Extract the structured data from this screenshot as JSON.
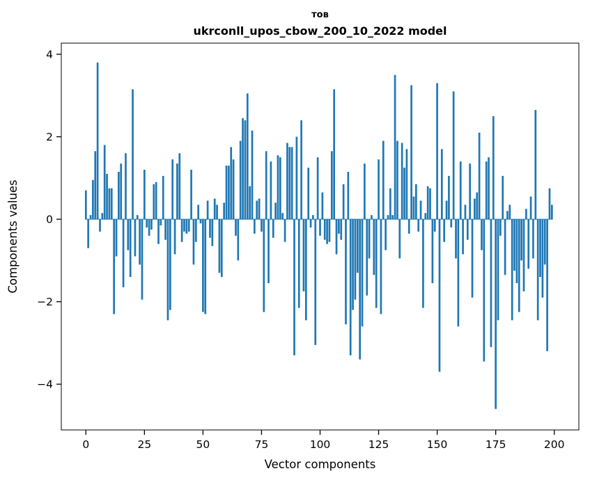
{
  "figure": {
    "background": "#ffffff",
    "axis_color": "#000000",
    "tick_label_color": "#000000"
  },
  "chart_data": {
    "type": "bar",
    "title": "тов",
    "subtitle": "ukrconll_upos_cbow_200_10_2022 model",
    "xlabel": "Vector components",
    "ylabel": "Components values",
    "bar_color": "#1f77b4",
    "n_components": 200,
    "x_ticks": [
      0,
      25,
      50,
      75,
      100,
      125,
      150,
      175,
      200
    ],
    "y_ticks": [
      -4,
      -2,
      0,
      2,
      4
    ],
    "xlim": [
      -10.5,
      210.5
    ],
    "ylim": [
      -5.11,
      4.27
    ],
    "grid": false,
    "legend": false,
    "values": [
      0.7,
      -0.7,
      0.1,
      0.95,
      1.65,
      3.8,
      -0.3,
      0.15,
      1.8,
      1.1,
      0.75,
      0.75,
      -2.3,
      -0.9,
      1.15,
      1.35,
      -1.65,
      1.6,
      -0.75,
      -1.4,
      3.15,
      -0.9,
      0.1,
      -1.1,
      -1.95,
      1.2,
      -0.2,
      -0.4,
      -0.25,
      0.85,
      0.9,
      -0.6,
      -0.15,
      1.05,
      -0.5,
      -2.45,
      -2.2,
      1.45,
      -0.85,
      1.35,
      1.6,
      -0.55,
      -0.3,
      -0.35,
      -0.3,
      1.2,
      -1.1,
      -0.55,
      0.35,
      -0.1,
      -2.25,
      -2.3,
      0.45,
      -0.45,
      -0.65,
      0.5,
      0.35,
      -1.3,
      -1.4,
      0.4,
      1.3,
      1.3,
      1.75,
      1.45,
      -0.4,
      -1.0,
      1.9,
      2.45,
      2.4,
      3.05,
      0.8,
      2.15,
      -0.35,
      0.45,
      0.5,
      -0.3,
      -2.25,
      1.65,
      -1.55,
      1.4,
      -0.45,
      0.4,
      1.55,
      1.5,
      0.15,
      -0.55,
      1.85,
      1.75,
      1.75,
      -3.3,
      2.0,
      -2.15,
      2.4,
      -1.75,
      -2.45,
      1.25,
      -0.2,
      0.1,
      -3.05,
      1.5,
      -0.4,
      0.65,
      -0.5,
      -0.6,
      -0.55,
      1.65,
      3.15,
      -0.85,
      -0.35,
      -0.5,
      0.85,
      -2.55,
      1.15,
      -3.3,
      -2.2,
      -1.95,
      -1.3,
      -3.4,
      -2.6,
      1.35,
      -1.85,
      -0.95,
      0.1,
      -1.35,
      -2.15,
      1.45,
      -2.3,
      1.9,
      -0.75,
      0.1,
      0.75,
      0.1,
      3.5,
      1.9,
      -0.95,
      1.85,
      1.25,
      1.7,
      -0.35,
      3.25,
      0.55,
      0.85,
      -0.3,
      0.45,
      -2.15,
      0.15,
      0.8,
      0.75,
      -1.55,
      -0.3,
      3.3,
      -3.7,
      1.7,
      -0.55,
      0.45,
      1.05,
      -0.2,
      3.1,
      -0.95,
      -2.6,
      1.4,
      -0.85,
      0.35,
      -0.5,
      1.35,
      -1.9,
      0.5,
      0.65,
      2.1,
      -0.75,
      -3.45,
      1.4,
      1.5,
      -3.1,
      2.5,
      -4.6,
      -2.45,
      -0.4,
      1.05,
      -1.35,
      0.2,
      0.35,
      -2.45,
      -1.25,
      -1.55,
      -2.25,
      -1.0,
      -1.75,
      0.25,
      -1.2,
      0.55,
      -0.95,
      2.65,
      -2.45,
      -1.4,
      -1.9,
      -1.1,
      -3.2,
      0.75,
      0.35
    ]
  }
}
